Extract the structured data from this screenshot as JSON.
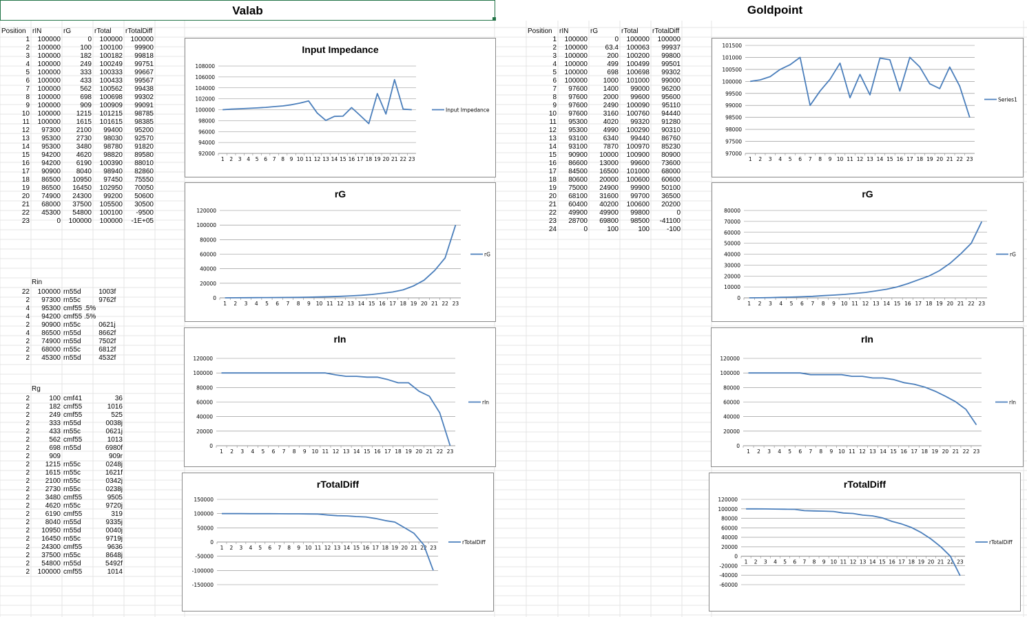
{
  "titles": {
    "left": "Valab",
    "right": "Goldpoint"
  },
  "valab_table": {
    "headers": [
      "Position",
      "rIN",
      "rG",
      "rTotal",
      "rTotalDiff"
    ],
    "rows": [
      [
        "1",
        "100000",
        "0",
        "100000",
        "100000"
      ],
      [
        "2",
        "100000",
        "100",
        "100100",
        "99900"
      ],
      [
        "3",
        "100000",
        "182",
        "100182",
        "99818"
      ],
      [
        "4",
        "100000",
        "249",
        "100249",
        "99751"
      ],
      [
        "5",
        "100000",
        "333",
        "100333",
        "99667"
      ],
      [
        "6",
        "100000",
        "433",
        "100433",
        "99567"
      ],
      [
        "7",
        "100000",
        "562",
        "100562",
        "99438"
      ],
      [
        "8",
        "100000",
        "698",
        "100698",
        "99302"
      ],
      [
        "9",
        "100000",
        "909",
        "100909",
        "99091"
      ],
      [
        "10",
        "100000",
        "1215",
        "101215",
        "98785"
      ],
      [
        "11",
        "100000",
        "1615",
        "101615",
        "98385"
      ],
      [
        "12",
        "97300",
        "2100",
        "99400",
        "95200"
      ],
      [
        "13",
        "95300",
        "2730",
        "98030",
        "92570"
      ],
      [
        "14",
        "95300",
        "3480",
        "98780",
        "91820"
      ],
      [
        "15",
        "94200",
        "4620",
        "98820",
        "89580"
      ],
      [
        "16",
        "94200",
        "6190",
        "100390",
        "88010"
      ],
      [
        "17",
        "90900",
        "8040",
        "98940",
        "82860"
      ],
      [
        "18",
        "86500",
        "10950",
        "97450",
        "75550"
      ],
      [
        "19",
        "86500",
        "16450",
        "102950",
        "70050"
      ],
      [
        "20",
        "74900",
        "24300",
        "99200",
        "50600"
      ],
      [
        "21",
        "68000",
        "37500",
        "105500",
        "30500"
      ],
      [
        "22",
        "45300",
        "54800",
        "100100",
        "-9500"
      ],
      [
        "23",
        "0",
        "100000",
        "100000",
        "-1E+05"
      ]
    ]
  },
  "rin_section": {
    "label": "Rin",
    "rows": [
      [
        "22",
        "100000",
        "rn55d",
        "1003f"
      ],
      [
        "2",
        "97300",
        "rn55c",
        "9762f"
      ],
      [
        "4",
        "95300",
        "cmf55 .5%",
        ""
      ],
      [
        "4",
        "94200",
        "cmf55 .5%",
        ""
      ],
      [
        "2",
        "90900",
        "rn55c",
        "0621j"
      ],
      [
        "4",
        "86500",
        "rn55d",
        "8662f"
      ],
      [
        "2",
        "74900",
        "rn55d",
        "7502f"
      ],
      [
        "2",
        "68000",
        "rn55c",
        "6812f"
      ],
      [
        "2",
        "45300",
        "rn55d",
        "4532f"
      ]
    ]
  },
  "rg_section": {
    "label": "Rg",
    "rows": [
      [
        "2",
        "100",
        "cmf41",
        "36"
      ],
      [
        "2",
        "182",
        "cmf55",
        "1016"
      ],
      [
        "2",
        "249",
        "cmf55",
        "525"
      ],
      [
        "2",
        "333",
        "rn55d",
        "0038j"
      ],
      [
        "2",
        "433",
        "rn55c",
        "0621j"
      ],
      [
        "2",
        "562",
        "cmf55",
        "1013"
      ],
      [
        "2",
        "698",
        "rn55d",
        "6980f"
      ],
      [
        "2",
        "909",
        "",
        "909r"
      ],
      [
        "2",
        "1215",
        "rn55c",
        "0248j"
      ],
      [
        "2",
        "1615",
        "rn55c",
        "1621f"
      ],
      [
        "2",
        "2100",
        "rn55c",
        "0342j"
      ],
      [
        "2",
        "2730",
        "rn55c",
        "0238j"
      ],
      [
        "2",
        "3480",
        "cmf55",
        "9505"
      ],
      [
        "2",
        "4620",
        "rn55c",
        "9720j"
      ],
      [
        "2",
        "6190",
        "cmf55",
        "319"
      ],
      [
        "2",
        "8040",
        "rn55d",
        "9335j"
      ],
      [
        "2",
        "10950",
        "rn55d",
        "0040j"
      ],
      [
        "2",
        "16450",
        "rn55c",
        "9719j"
      ],
      [
        "2",
        "24300",
        "cmf55",
        "9636"
      ],
      [
        "2",
        "37500",
        "rn55c",
        "8648j"
      ],
      [
        "2",
        "54800",
        "rn55d",
        "5492f"
      ],
      [
        "2",
        "100000",
        "cmf55",
        "1014"
      ]
    ]
  },
  "goldpoint_table": {
    "headers": [
      "Position",
      "rIN",
      "rG",
      "rTotal",
      "rTotalDiff"
    ],
    "rows": [
      [
        "1",
        "100000",
        "0",
        "100000",
        "100000"
      ],
      [
        "2",
        "100000",
        "63.4",
        "100063",
        "99937"
      ],
      [
        "3",
        "100000",
        "200",
        "100200",
        "99800"
      ],
      [
        "4",
        "100000",
        "499",
        "100499",
        "99501"
      ],
      [
        "5",
        "100000",
        "698",
        "100698",
        "99302"
      ],
      [
        "6",
        "100000",
        "1000",
        "101000",
        "99000"
      ],
      [
        "7",
        "97600",
        "1400",
        "99000",
        "96200"
      ],
      [
        "8",
        "97600",
        "2000",
        "99600",
        "95600"
      ],
      [
        "9",
        "97600",
        "2490",
        "100090",
        "95110"
      ],
      [
        "10",
        "97600",
        "3160",
        "100760",
        "94440"
      ],
      [
        "11",
        "95300",
        "4020",
        "99320",
        "91280"
      ],
      [
        "12",
        "95300",
        "4990",
        "100290",
        "90310"
      ],
      [
        "13",
        "93100",
        "6340",
        "99440",
        "86760"
      ],
      [
        "14",
        "93100",
        "7870",
        "100970",
        "85230"
      ],
      [
        "15",
        "90900",
        "10000",
        "100900",
        "80900"
      ],
      [
        "16",
        "86600",
        "13000",
        "99600",
        "73600"
      ],
      [
        "17",
        "84500",
        "16500",
        "101000",
        "68000"
      ],
      [
        "18",
        "80600",
        "20000",
        "100600",
        "60600"
      ],
      [
        "19",
        "75000",
        "24900",
        "99900",
        "50100"
      ],
      [
        "20",
        "68100",
        "31600",
        "99700",
        "36500"
      ],
      [
        "21",
        "60400",
        "40200",
        "100600",
        "20200"
      ],
      [
        "22",
        "49900",
        "49900",
        "99800",
        "0"
      ],
      [
        "23",
        "28700",
        "69800",
        "98500",
        "-41100"
      ],
      [
        "24",
        "0",
        "100",
        "100",
        "-100"
      ]
    ]
  },
  "chart_data": [
    {
      "id": "v-impedance",
      "type": "line",
      "title": "Input Impedance",
      "legend": "top-right-center",
      "series": [
        {
          "name": "Input Impedance",
          "values": [
            100000,
            100100,
            100182,
            100249,
            100333,
            100433,
            100562,
            100698,
            100909,
            101215,
            101615,
            99400,
            98030,
            98780,
            98820,
            100390,
            98940,
            97450,
            102950,
            99200,
            105500,
            100100,
            100000
          ]
        }
      ],
      "yticks": [
        92000,
        94000,
        96000,
        98000,
        100000,
        102000,
        104000,
        106000,
        108000
      ],
      "ylim": [
        92000,
        108000
      ],
      "categories": [
        "1",
        "2",
        "3",
        "4",
        "5",
        "6",
        "7",
        "8",
        "9",
        "10",
        "11",
        "12",
        "13",
        "14",
        "15",
        "16",
        "17",
        "18",
        "19",
        "20",
        "21",
        "22",
        "23"
      ]
    },
    {
      "id": "v-rg",
      "type": "line",
      "title": "rG",
      "legend": "right",
      "series": [
        {
          "name": "rG",
          "values": [
            0,
            100,
            182,
            249,
            333,
            433,
            562,
            698,
            909,
            1215,
            1615,
            2100,
            2730,
            3480,
            4620,
            6190,
            8040,
            10950,
            16450,
            24300,
            37500,
            54800,
            100000
          ]
        }
      ],
      "yticks": [
        0,
        20000,
        40000,
        60000,
        80000,
        100000,
        120000
      ],
      "ylim": [
        0,
        120000
      ],
      "categories": [
        "1",
        "2",
        "3",
        "4",
        "5",
        "6",
        "7",
        "8",
        "9",
        "10",
        "11",
        "12",
        "13",
        "14",
        "15",
        "16",
        "17",
        "18",
        "19",
        "20",
        "21",
        "22",
        "23"
      ]
    },
    {
      "id": "v-rin",
      "type": "line",
      "title": "rIn",
      "legend": "right",
      "series": [
        {
          "name": "rIn",
          "values": [
            100000,
            100000,
            100000,
            100000,
            100000,
            100000,
            100000,
            100000,
            100000,
            100000,
            100000,
            97300,
            95300,
            95300,
            94200,
            94200,
            90900,
            86500,
            86500,
            74900,
            68000,
            45300,
            0
          ]
        }
      ],
      "yticks": [
        0,
        20000,
        40000,
        60000,
        80000,
        100000,
        120000
      ],
      "ylim": [
        0,
        120000
      ],
      "categories": [
        "1",
        "2",
        "3",
        "4",
        "5",
        "6",
        "7",
        "8",
        "9",
        "10",
        "11",
        "12",
        "13",
        "14",
        "15",
        "16",
        "17",
        "18",
        "19",
        "20",
        "21",
        "22",
        "23"
      ]
    },
    {
      "id": "v-rtd",
      "type": "line",
      "title": "rTotalDiff",
      "legend": "right",
      "series": [
        {
          "name": "rTotalDiff",
          "values": [
            100000,
            99900,
            99818,
            99751,
            99667,
            99567,
            99438,
            99302,
            99091,
            98785,
            98385,
            95200,
            92570,
            91820,
            89580,
            88010,
            82860,
            75550,
            70050,
            50600,
            30500,
            -9500,
            -100000
          ]
        }
      ],
      "yticks": [
        -150000,
        -100000,
        -50000,
        0,
        50000,
        100000,
        150000
      ],
      "ylim": [
        -150000,
        150000
      ],
      "categories": [
        "1",
        "2",
        "3",
        "4",
        "5",
        "6",
        "7",
        "8",
        "9",
        "10",
        "11",
        "12",
        "13",
        "14",
        "15",
        "16",
        "17",
        "18",
        "19",
        "20",
        "21",
        "22",
        "23"
      ]
    },
    {
      "id": "g-series1",
      "type": "line",
      "title": "",
      "legend": "right",
      "series": [
        {
          "name": "Series1",
          "values": [
            100000,
            100063,
            100200,
            100499,
            100698,
            101000,
            99000,
            99600,
            100090,
            100760,
            99320,
            100290,
            99440,
            100970,
            100900,
            99600,
            101000,
            100600,
            99900,
            99700,
            100600,
            99800,
            98500
          ]
        }
      ],
      "yticks": [
        97000,
        97500,
        98000,
        98500,
        99000,
        99500,
        100000,
        100500,
        101000,
        101500
      ],
      "ylim": [
        97000,
        101500
      ],
      "categories": [
        "1",
        "2",
        "3",
        "4",
        "5",
        "6",
        "7",
        "8",
        "9",
        "10",
        "11",
        "12",
        "13",
        "14",
        "15",
        "16",
        "17",
        "18",
        "19",
        "20",
        "21",
        "22",
        "23"
      ]
    },
    {
      "id": "g-rg",
      "type": "line",
      "title": "rG",
      "legend": "right",
      "series": [
        {
          "name": "rG",
          "values": [
            0,
            63.4,
            200,
            499,
            698,
            1000,
            1400,
            2000,
            2490,
            3160,
            4020,
            4990,
            6340,
            7870,
            10000,
            13000,
            16500,
            20000,
            24900,
            31600,
            40200,
            49900,
            69800
          ]
        }
      ],
      "yticks": [
        0,
        10000,
        20000,
        30000,
        40000,
        50000,
        60000,
        70000,
        80000
      ],
      "ylim": [
        0,
        80000
      ],
      "categories": [
        "1",
        "2",
        "3",
        "4",
        "5",
        "6",
        "7",
        "8",
        "9",
        "10",
        "11",
        "12",
        "13",
        "14",
        "15",
        "16",
        "17",
        "18",
        "19",
        "20",
        "21",
        "22",
        "23"
      ]
    },
    {
      "id": "g-rin",
      "type": "line",
      "title": "rIn",
      "legend": "right",
      "series": [
        {
          "name": "rIn",
          "values": [
            100000,
            100000,
            100000,
            100000,
            100000,
            100000,
            97600,
            97600,
            97600,
            97600,
            95300,
            95300,
            93100,
            93100,
            90900,
            86600,
            84500,
            80600,
            75000,
            68100,
            60400,
            49900,
            28700
          ]
        }
      ],
      "yticks": [
        0,
        20000,
        40000,
        60000,
        80000,
        100000,
        120000
      ],
      "ylim": [
        0,
        120000
      ],
      "categories": [
        "1",
        "2",
        "3",
        "4",
        "5",
        "6",
        "7",
        "8",
        "9",
        "10",
        "11",
        "12",
        "13",
        "14",
        "15",
        "16",
        "17",
        "18",
        "19",
        "20",
        "21",
        "22",
        "23"
      ]
    },
    {
      "id": "g-rtd",
      "type": "line",
      "title": "rTotalDiff",
      "legend": "right",
      "series": [
        {
          "name": "rTotalDiff",
          "values": [
            100000,
            99937,
            99800,
            99501,
            99302,
            99000,
            96200,
            95600,
            95110,
            94440,
            91280,
            90310,
            86760,
            85230,
            80900,
            73600,
            68000,
            60600,
            50100,
            36500,
            20200,
            0,
            -41100
          ]
        }
      ],
      "yticks": [
        -60000,
        -40000,
        -20000,
        0,
        20000,
        40000,
        60000,
        80000,
        100000,
        120000
      ],
      "ylim": [
        -60000,
        120000
      ],
      "categories": [
        "1",
        "2",
        "3",
        "4",
        "5",
        "6",
        "7",
        "8",
        "9",
        "10",
        "11",
        "12",
        "13",
        "14",
        "15",
        "16",
        "17",
        "18",
        "19",
        "20",
        "21",
        "22",
        "23"
      ]
    }
  ],
  "colors": {
    "line": "#4a7ebb",
    "grid": "#868686",
    "gridline": "#d9d9d9",
    "selection": "#217346"
  }
}
